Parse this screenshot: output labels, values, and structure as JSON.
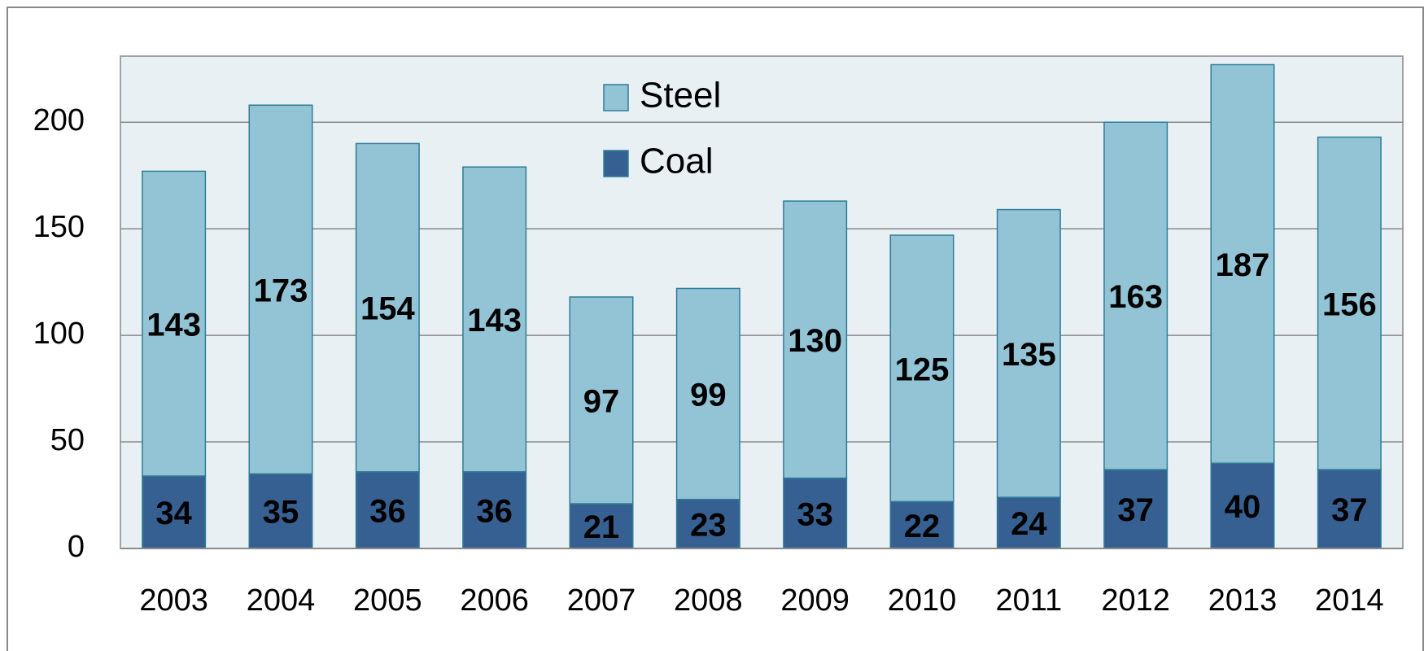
{
  "chart_data": {
    "type": "stacked_bar",
    "categories": [
      "2003",
      "2004",
      "2005",
      "2006",
      "2007",
      "2008",
      "2009",
      "2010",
      "2011",
      "2012",
      "2013",
      "2014"
    ],
    "series": [
      {
        "name": "Coal",
        "color": "#376092",
        "values": [
          34,
          35,
          36,
          36,
          21,
          23,
          33,
          22,
          24,
          37,
          40,
          37
        ]
      },
      {
        "name": "Steel",
        "color": "#92c4d6",
        "values": [
          143,
          173,
          154,
          143,
          97,
          99,
          130,
          125,
          135,
          163,
          187,
          156
        ]
      }
    ],
    "ylim": [
      0,
      231
    ],
    "yticks": [
      0,
      50,
      100,
      150,
      200
    ],
    "grid": true,
    "legend": "top"
  }
}
